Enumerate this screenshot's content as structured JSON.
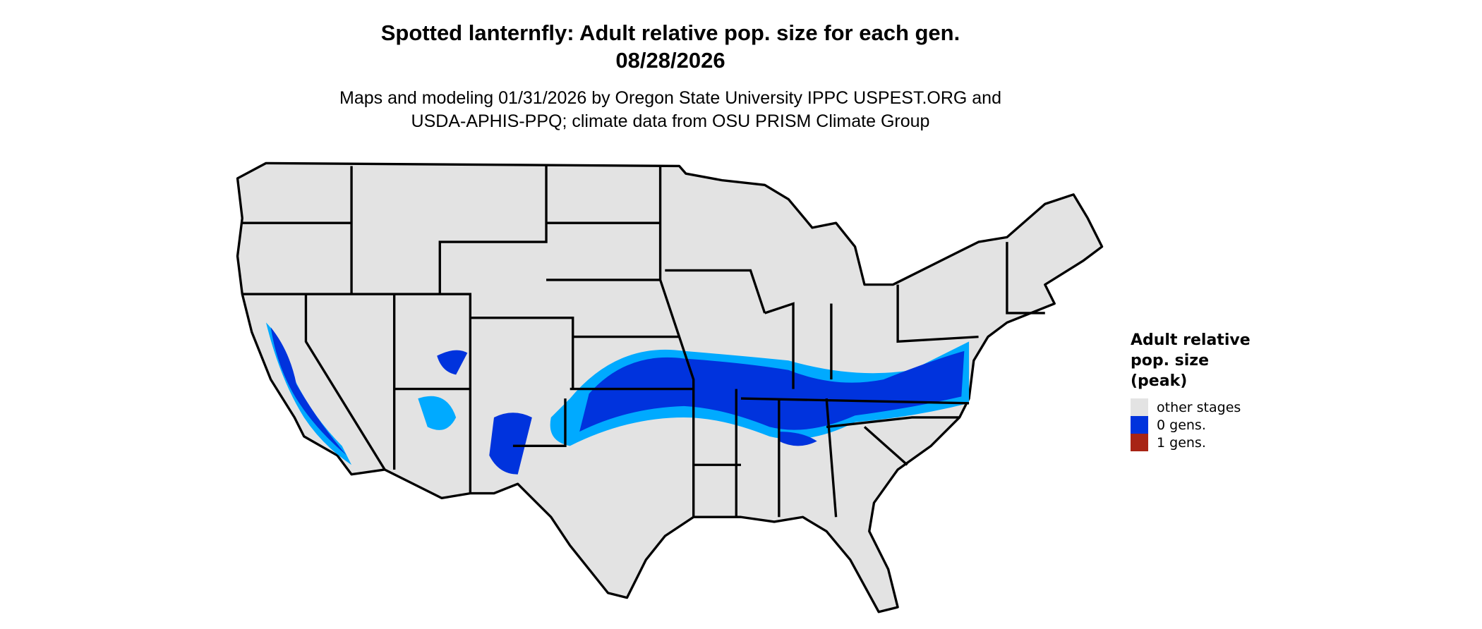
{
  "title": {
    "line1": "Spotted lanternfly: Adult relative pop. size for each gen.",
    "line2": "08/28/2026"
  },
  "subtitle": {
    "line1": "Maps and modeling 01/31/2026 by Oregon State University IPPC USPEST.ORG and",
    "line2": "USDA-APHIS-PPQ; climate data from OSU PRISM Climate Group"
  },
  "legend": {
    "title_lines": [
      "Adult relative",
      "pop. size",
      "(peak)"
    ],
    "items": [
      {
        "label": "other stages",
        "color": "#e3e3e3"
      },
      {
        "label": "0 gens.",
        "color": "#0033dd"
      },
      {
        "label": "1 gens.",
        "color": "#a82415"
      }
    ]
  },
  "colors": {
    "land": "#e3e3e3",
    "border": "#000000",
    "zero_gens_dark": "#0033dd",
    "zero_gens_light": "#00aaff"
  }
}
